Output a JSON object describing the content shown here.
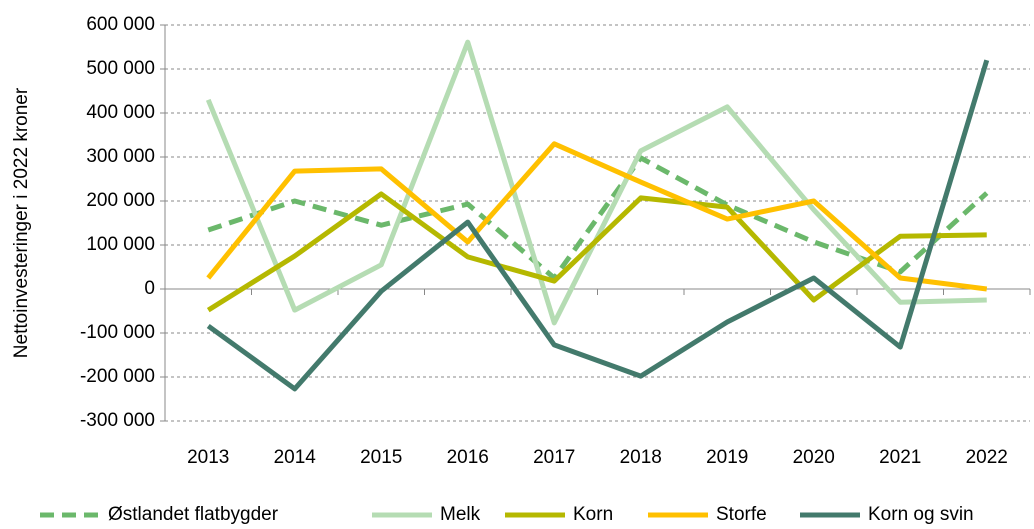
{
  "chart_data": {
    "type": "line",
    "y_label": "Nettoinvesteringer i 2022 kroner",
    "categories": [
      "2013",
      "2014",
      "2015",
      "2016",
      "2017",
      "2018",
      "2019",
      "2020",
      "2021",
      "2022"
    ],
    "series": [
      {
        "name": "Østlandet flatbygder",
        "color": "#6bb86b",
        "dashed": true,
        "values": [
          134000,
          200000,
          145000,
          193000,
          25000,
          298000,
          191000,
          107000,
          39000,
          218000
        ]
      },
      {
        "name": "Melk",
        "color": "#b5dcb3",
        "values": [
          430000,
          -48000,
          55000,
          561000,
          -77000,
          314000,
          414000,
          180000,
          -30000,
          -25000
        ]
      },
      {
        "name": "Korn",
        "color": "#b5b800",
        "values": [
          -48000,
          75000,
          216000,
          73000,
          18000,
          207000,
          186000,
          -25000,
          120000,
          123000
        ]
      },
      {
        "name": "Storfe",
        "color": "#ffc000",
        "values": [
          25000,
          268000,
          273000,
          107000,
          330000,
          243000,
          159000,
          200000,
          25000,
          0
        ]
      },
      {
        "name": "Korn og svin",
        "color": "#437a6c",
        "values": [
          -84000,
          -227000,
          -5000,
          152000,
          -127000,
          -198000,
          -75000,
          25000,
          -132000,
          520000
        ]
      }
    ],
    "ylim": [
      -300000,
      600000
    ],
    "yticks": [
      {
        "value": -300000,
        "label": "-300 000"
      },
      {
        "value": -200000,
        "label": "-200 000"
      },
      {
        "value": -100000,
        "label": "-100 000"
      },
      0,
      {
        "value": 100000,
        "label": "100 000"
      },
      {
        "value": 200000,
        "label": "200 000"
      },
      {
        "value": 300000,
        "label": "300 000"
      },
      {
        "value": 400000,
        "label": "400 000"
      },
      {
        "value": 500000,
        "label": "500 000"
      },
      {
        "value": 600000,
        "label": "600 000"
      }
    ],
    "grid": true,
    "legend": "bottom"
  }
}
